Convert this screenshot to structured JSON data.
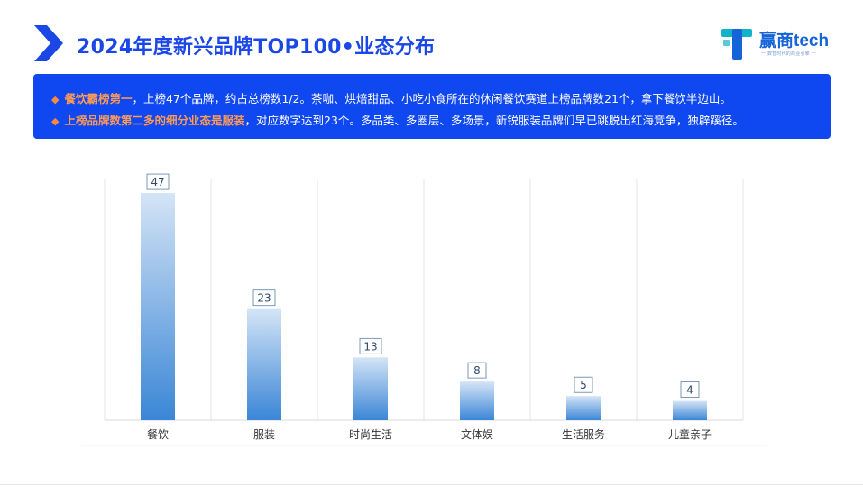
{
  "header": {
    "title": "2024年度新兴品牌TOP100•业态分布",
    "logo_text": "赢商tech",
    "logo_tagline": "一 数智时代的商业引擎 一"
  },
  "summary": {
    "points": [
      {
        "highlight": "餐饮霸榜第一",
        "text": "，上榜47个品牌，约占总榜数1/2。茶咖、烘焙甜品、小吃小食所在的休闲餐饮赛道上榜品牌数21个，拿下餐饮半边山。"
      },
      {
        "highlight": "上榜品牌数第二多的细分业态是服装",
        "text": "，对应数字达到23个。多品类、多圈层、多场景，新锐服装品牌们早已跳脱出红海竞争，独辟蹊径。"
      }
    ]
  },
  "colors": {
    "accent": "#1a47e6",
    "summary_bg": "#0f47f0",
    "highlight": "#ff9a54",
    "bar_top": "#d4e4f6",
    "bar_bottom": "#3a86d6"
  },
  "chart_data": {
    "type": "bar",
    "categories": [
      "餐饮",
      "服装",
      "时尚生活",
      "文体娱",
      "生活服务",
      "儿童亲子"
    ],
    "values": [
      47,
      23,
      13,
      8,
      5,
      4
    ],
    "title": "",
    "xlabel": "",
    "ylabel": "",
    "ylim": [
      0,
      50
    ],
    "grid": "vertical",
    "legend": "none"
  }
}
